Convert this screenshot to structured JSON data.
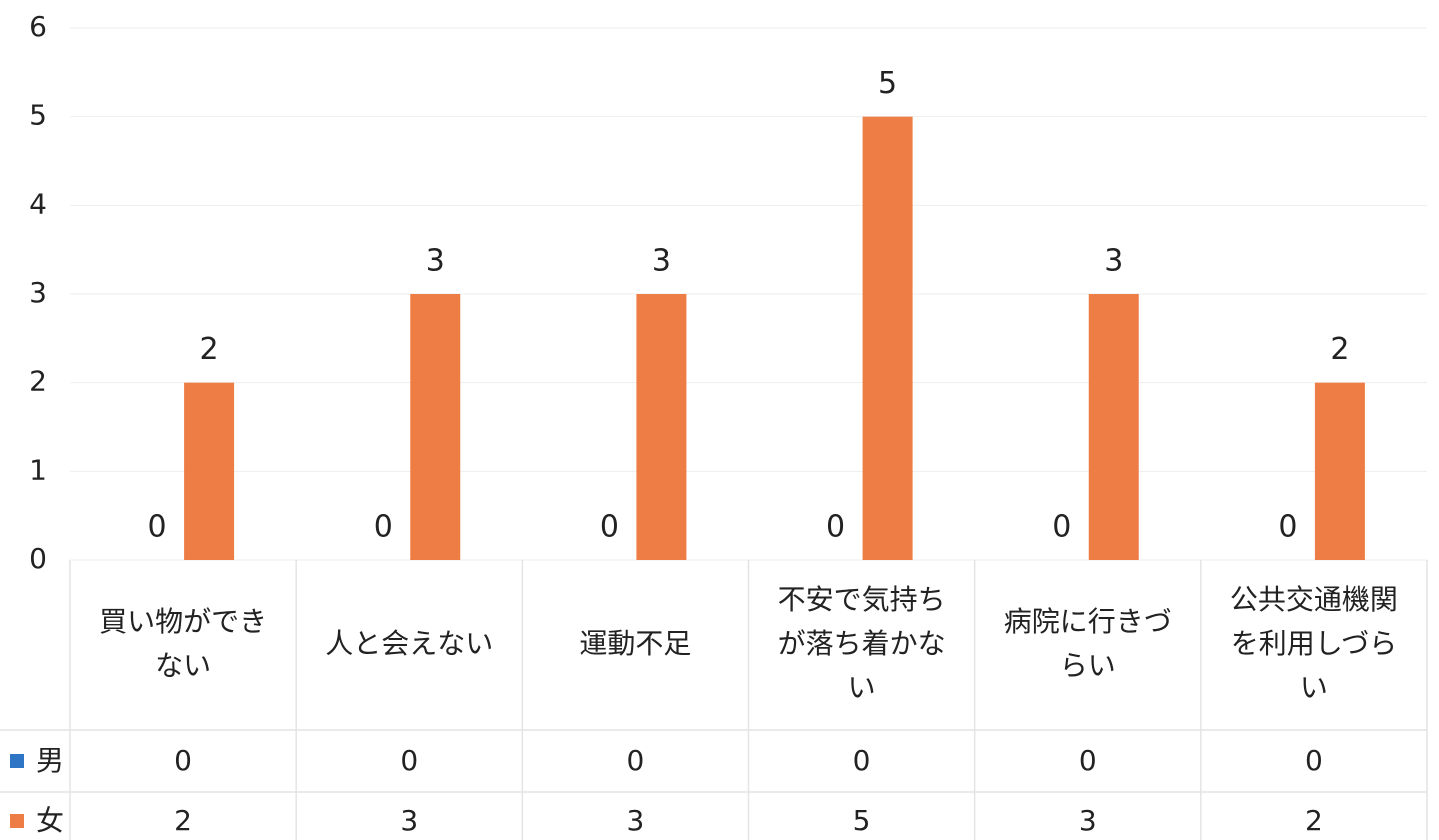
{
  "chart_data": {
    "type": "bar",
    "categories": [
      "買い物ができない",
      "人と会えない",
      "運動不足",
      "不安で気持ちが落ち着かない",
      "病院に行きづらい",
      "公共交通機関を利用しづらい"
    ],
    "series": [
      {
        "name": "男",
        "color": "#2e75c6",
        "values": [
          0,
          0,
          0,
          0,
          0,
          0
        ]
      },
      {
        "name": "女",
        "color": "#ee7d45",
        "values": [
          2,
          3,
          3,
          5,
          3,
          2
        ]
      }
    ],
    "ylim": [
      0,
      6
    ],
    "yticks": [
      0,
      1,
      2,
      3,
      4,
      5,
      6
    ],
    "grid": true,
    "data_table": true
  }
}
